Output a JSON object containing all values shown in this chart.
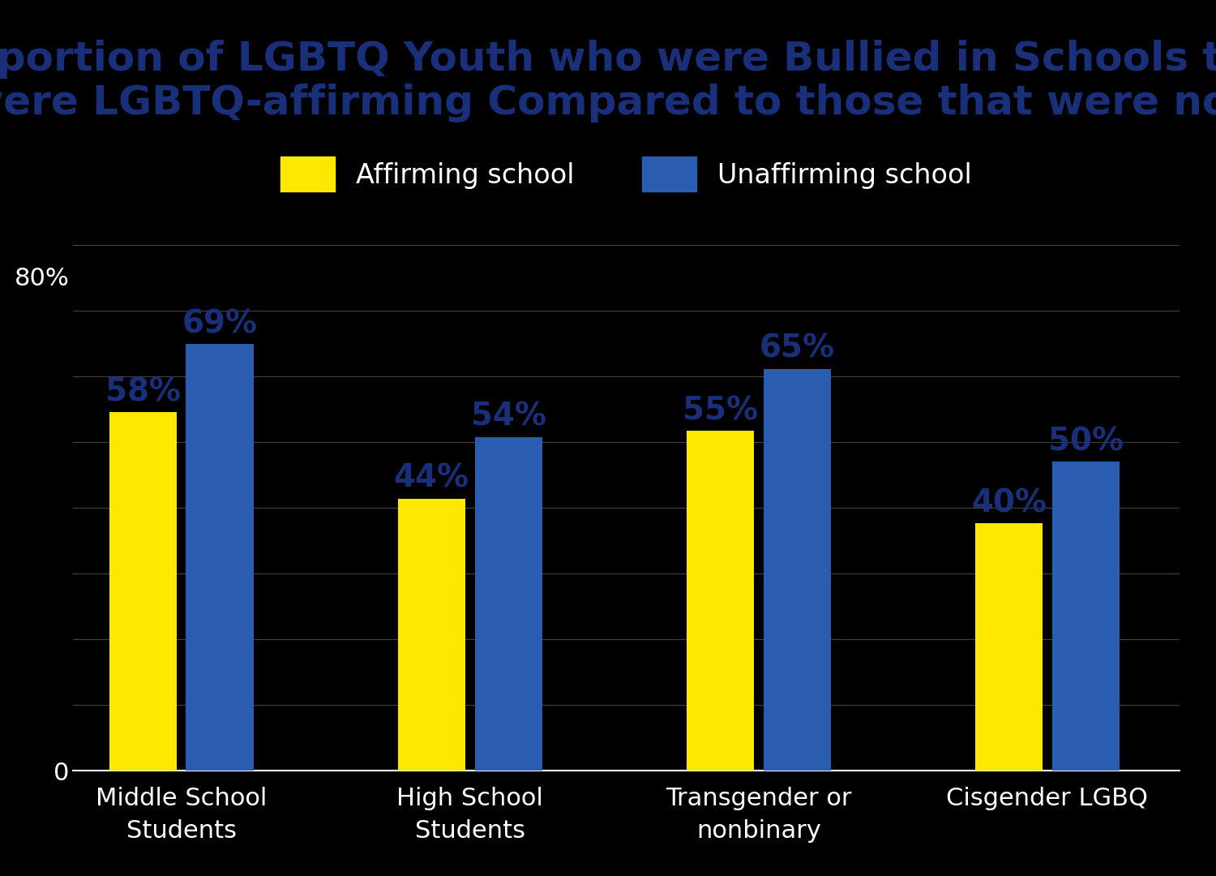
{
  "title_line1": "Proportion of LGBTQ Youth who were Bullied in Schools that",
  "title_line2": "were LGBTQ-affirming Compared to those that were not",
  "categories": [
    "Middle School\nStudents",
    "High School\nStudents",
    "Transgender or\nnonbinary",
    "Cisgender LGBQ"
  ],
  "affirming_values": [
    58,
    44,
    55,
    40
  ],
  "unaffirming_values": [
    69,
    54,
    65,
    50
  ],
  "affirming_color": "#FFE800",
  "unaffirming_color": "#2A5DB0",
  "background_color": "#000000",
  "title_color": "#1a2f7a",
  "bar_label_color": "#1a2f7a",
  "legend_text_color": "#ffffff",
  "tick_label_color": "#ffffff",
  "gridline_color": "#555555",
  "spine_color": "#ffffff",
  "legend_affirming": "Affirming school",
  "legend_unaffirming": "Unaffirming school",
  "ylim_max": 85,
  "ytick_val": 80,
  "ytick_label": "80%",
  "zero_label": "0",
  "num_gridlines": 8,
  "title_fontsize": 36,
  "bar_label_fontsize": 28,
  "legend_fontsize": 24,
  "tick_label_fontsize": 22,
  "xtick_fontsize": 22,
  "bar_width": 0.28,
  "bar_gap": 0.04,
  "group_positions": [
    0.5,
    1.7,
    2.9,
    4.1
  ]
}
